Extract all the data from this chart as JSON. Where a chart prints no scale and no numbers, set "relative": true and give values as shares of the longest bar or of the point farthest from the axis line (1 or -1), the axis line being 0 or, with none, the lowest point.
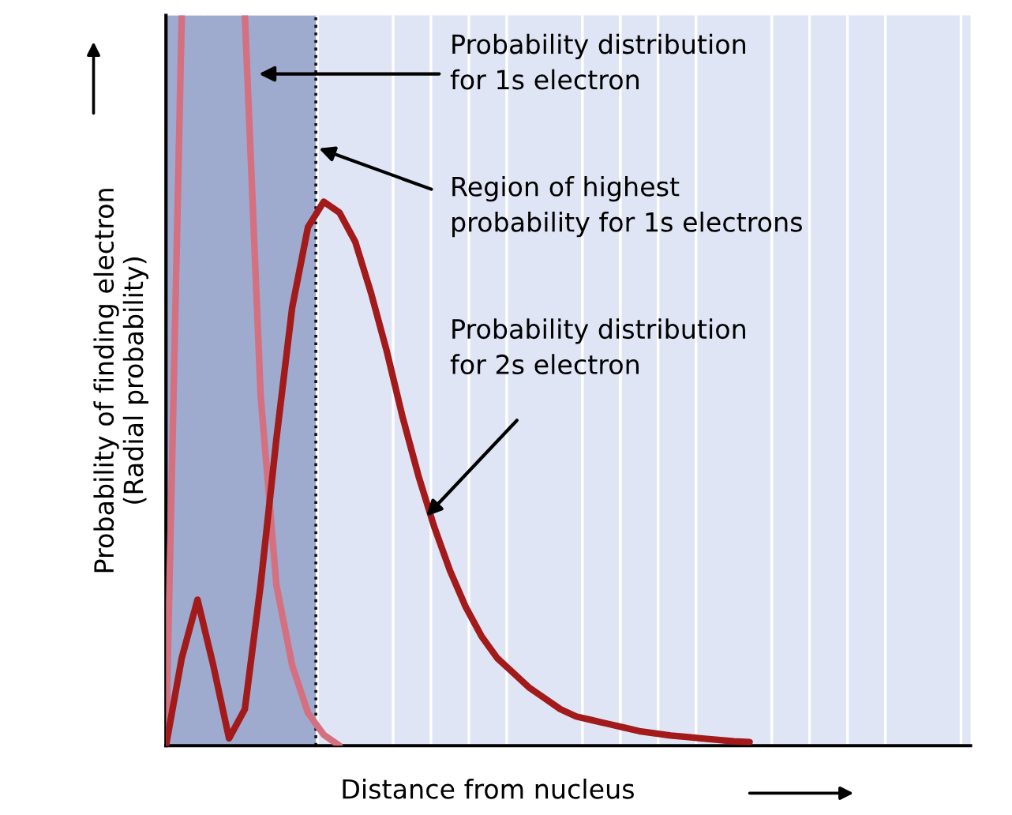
{
  "chart_data": {
    "type": "line",
    "relative": true,
    "xlabel": "Distance from nucleus",
    "ylabel": "Probability of finding electron\n(Radial probability)",
    "categories": [
      null,
      null,
      null,
      null,
      null,
      null,
      null,
      null,
      null,
      null,
      null,
      null,
      null,
      null,
      null,
      null,
      null,
      null,
      null,
      null,
      null,
      null,
      null,
      null,
      null,
      null,
      null,
      null,
      null,
      null,
      null,
      null,
      null,
      null,
      null,
      null,
      null,
      null,
      null,
      null,
      null,
      null,
      null,
      null,
      null,
      null,
      null,
      null,
      null,
      null,
      null,
      null
    ],
    "series": [
      {
        "color": "#d4707f",
        "values": [
          0,
          1.0,
          null,
          null,
          null,
          1.0,
          0.48,
          0.22,
          0.11,
          0.045,
          0.015,
          0,
          null,
          null,
          null,
          null,
          null,
          null,
          null,
          null,
          null,
          null,
          null,
          null,
          null,
          null,
          null,
          null,
          null,
          null,
          null,
          null,
          null,
          null,
          null,
          null,
          null,
          null,
          null,
          null,
          null,
          null,
          null,
          null,
          null,
          null,
          null,
          null,
          null,
          null,
          null,
          null
        ]
      },
      {
        "color": "#a31a1a",
        "values": [
          0,
          0.12,
          0.2,
          0.11,
          0.01,
          0.05,
          0.22,
          0.42,
          0.6,
          0.71,
          0.745,
          0.73,
          0.69,
          0.62,
          0.54,
          0.45,
          0.37,
          0.3,
          0.24,
          0.19,
          0.15,
          0.12,
          0.1,
          0.08,
          0.065,
          0.05,
          0.04,
          0.035,
          0.03,
          0.025,
          0.02,
          0.017,
          0.014,
          0.012,
          0.01,
          0.008,
          0.006,
          0.005,
          null,
          null,
          null,
          null,
          null,
          null,
          null,
          null,
          null,
          null,
          null,
          null,
          null,
          null
        ]
      }
    ],
    "annotations": [
      "Probability distribution\nfor 1s electron",
      "Region of highest\nprobability for 1s electrons",
      "Probability distribution\nfor 2s electron"
    ],
    "grid": "x"
  }
}
